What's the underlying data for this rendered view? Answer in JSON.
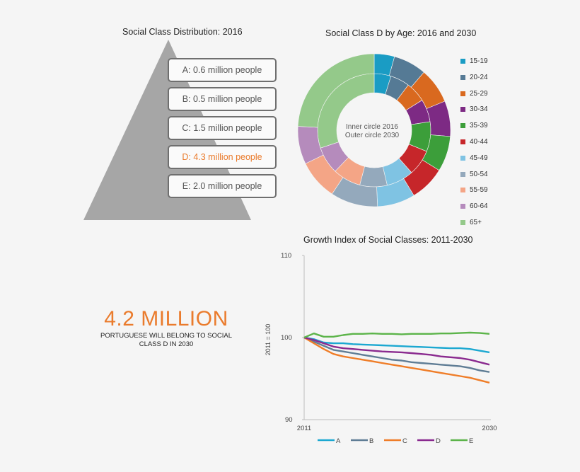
{
  "pyramid": {
    "title": "Social Class Distribution: 2016",
    "classes": [
      {
        "label": "A: 0.6 million people",
        "highlight": false
      },
      {
        "label": "B: 0.5 million people",
        "highlight": false
      },
      {
        "label": "C: 1.5 million people",
        "highlight": false
      },
      {
        "label": "D: 4.3 million people",
        "highlight": true
      },
      {
        "label": "E: 2.0 million people",
        "highlight": false
      }
    ],
    "highlight_color": "#ea7b2c"
  },
  "donut": {
    "title": "Social Class D by Age: 2016 and 2030",
    "center_line1": "Inner circle 2016",
    "center_line2": "Outer circle 2030"
  },
  "headline": {
    "number": "4.2 MILLION",
    "caption": "PORTUGUESE WILL BELONG TO SOCIAL CLASS D IN 2030"
  },
  "line": {
    "title": "Growth Index of Social Classes: 2011-2030",
    "ylabel": "2011 = 100",
    "y_ticks": [
      "110",
      "100",
      "90"
    ],
    "x_ticks": [
      "2011",
      "2030"
    ]
  },
  "chart_data": [
    {
      "type": "pie",
      "title": "Social Class D by Age: 2016 and 2030",
      "categories": [
        "15-19",
        "20-24",
        "25-29",
        "30-34",
        "35-39",
        "40-44",
        "45-49",
        "50-54",
        "55-59",
        "60-64",
        "65+"
      ],
      "colors": [
        "#1a9cc4",
        "#557a95",
        "#d9691f",
        "#7d2a84",
        "#3c9e3a",
        "#c6262a",
        "#7fc3e3",
        "#94a9bc",
        "#f4a586",
        "#b58bbc",
        "#94c98a"
      ],
      "series": [
        {
          "name": "Inner circle 2016",
          "values": [
            4.8,
            5.5,
            5.8,
            6.5,
            8.5,
            7.4,
            7.8,
            7.8,
            8.0,
            7.8,
            30.1
          ]
        },
        {
          "name": "Outer circle 2030",
          "values": [
            4.3,
            7.0,
            7.5,
            7.5,
            7.5,
            7.5,
            8.0,
            10.0,
            8.5,
            8.0,
            24.2
          ]
        }
      ]
    },
    {
      "type": "line",
      "title": "Growth Index of Social Classes: 2011-2030",
      "ylabel": "2011 = 100",
      "ylim": [
        90,
        110
      ],
      "x": [
        2011,
        2012,
        2013,
        2014,
        2015,
        2016,
        2017,
        2018,
        2019,
        2020,
        2021,
        2022,
        2023,
        2024,
        2025,
        2026,
        2027,
        2028,
        2029,
        2030
      ],
      "series": [
        {
          "name": "A",
          "color": "#1ca8d1",
          "values": [
            100,
            99.8,
            99.4,
            99.3,
            99.3,
            99.2,
            99.15,
            99.1,
            99.05,
            99.0,
            98.95,
            98.9,
            98.85,
            98.8,
            98.75,
            98.7,
            98.7,
            98.6,
            98.4,
            98.2
          ]
        },
        {
          "name": "B",
          "color": "#5f7d95",
          "values": [
            100,
            99.5,
            99.0,
            98.5,
            98.3,
            98.1,
            97.9,
            97.7,
            97.5,
            97.3,
            97.2,
            97.0,
            96.9,
            96.8,
            96.7,
            96.6,
            96.5,
            96.3,
            96.0,
            95.8
          ]
        },
        {
          "name": "C",
          "color": "#ef7d28",
          "values": [
            100,
            99.3,
            98.6,
            98.0,
            97.7,
            97.5,
            97.3,
            97.1,
            96.9,
            96.7,
            96.5,
            96.3,
            96.1,
            95.9,
            95.7,
            95.5,
            95.3,
            95.1,
            94.8,
            94.5
          ]
        },
        {
          "name": "D",
          "color": "#8a2a8f",
          "values": [
            100,
            99.7,
            99.3,
            98.9,
            98.7,
            98.6,
            98.5,
            98.4,
            98.3,
            98.25,
            98.2,
            98.1,
            98.0,
            97.9,
            97.7,
            97.6,
            97.5,
            97.3,
            97.0,
            96.7
          ]
        },
        {
          "name": "E",
          "color": "#5cb44a",
          "values": [
            100,
            100.5,
            100.1,
            100.1,
            100.3,
            100.45,
            100.45,
            100.5,
            100.45,
            100.45,
            100.4,
            100.45,
            100.45,
            100.45,
            100.5,
            100.5,
            100.55,
            100.6,
            100.55,
            100.45
          ]
        }
      ]
    }
  ]
}
